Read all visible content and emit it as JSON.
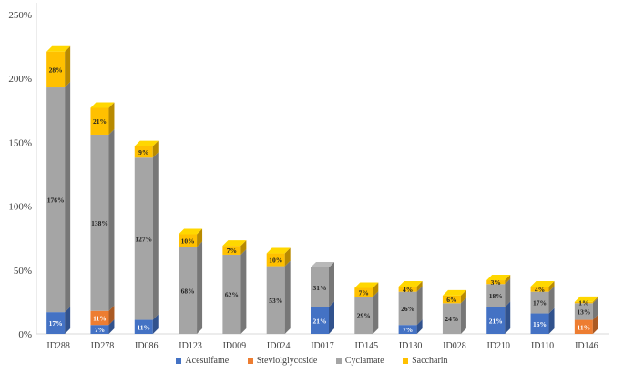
{
  "chart_data": {
    "type": "bar",
    "stacked": true,
    "style": "3d-column",
    "categories": [
      "ID288",
      "ID278",
      "ID086",
      "ID123",
      "ID009",
      "ID024",
      "ID017",
      "ID145",
      "ID130",
      "ID028",
      "ID210",
      "ID110",
      "ID146"
    ],
    "series": [
      {
        "name": "Acesulfame",
        "color": "#4472C4",
        "values": [
          17,
          7,
          11,
          0,
          0,
          0,
          21,
          0,
          7,
          0,
          21,
          16,
          0
        ],
        "labels": [
          "17%",
          "7%",
          "11%",
          "",
          "",
          "",
          "21%",
          "",
          "7%",
          "",
          "21%",
          "16%",
          ""
        ]
      },
      {
        "name": "Steviolglycoside",
        "color": "#ED7D31",
        "values": [
          0,
          11,
          0,
          0,
          0,
          0,
          0,
          0,
          0,
          0,
          0,
          0,
          11
        ],
        "labels": [
          "",
          "11%",
          "",
          "",
          "",
          "",
          "",
          "",
          "",
          "",
          "",
          "",
          "11%"
        ]
      },
      {
        "name": "Cyclamate",
        "color": "#A5A5A5",
        "values": [
          176,
          138,
          127,
          68,
          62,
          53,
          31,
          29,
          26,
          24,
          18,
          17,
          13
        ],
        "labels": [
          "176%",
          "138%",
          "127%",
          "68%",
          "62%",
          "53%",
          "31%",
          "29%",
          "26%",
          "24%",
          "18%",
          "17%",
          "13%"
        ]
      },
      {
        "name": "Saccharin",
        "color": "#FFC000",
        "values": [
          28,
          21,
          9,
          10,
          7,
          10,
          0,
          7,
          4,
          6,
          3,
          4,
          1
        ],
        "labels": [
          "28%",
          "21%",
          "9%",
          "10%",
          "7%",
          "10%",
          "",
          "7%",
          "4%",
          "6%",
          "3%",
          "4%",
          "1%"
        ]
      }
    ],
    "y_ticks": [
      "0%",
      "50%",
      "100%",
      "150%",
      "200%",
      "250%"
    ],
    "ylim": [
      0,
      250
    ],
    "legend_position": "bottom",
    "grid": false
  }
}
